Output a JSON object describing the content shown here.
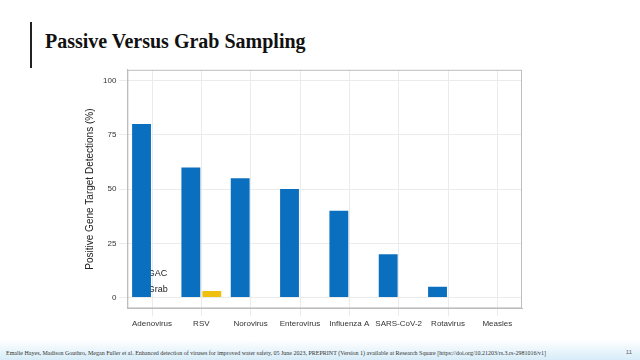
{
  "slide": {
    "title": "Passive Versus Grab Sampling",
    "footer": "Emalie Hayes, Madison Gouthro, Megan Fuller et al. Enhanced detection of viruses for improved water safety, 05 June 2023, PREPRINT (Version 1) available at Research Square [https://doi.org/10.21203/rs.3.rs-2981016/v1]",
    "page_number": "11"
  },
  "chart_data": {
    "type": "bar",
    "y_label": "Positive Gene Target Detections (%)",
    "categories": [
      "Adenovirus",
      "RSV",
      "Norovirus",
      "Enterovirus",
      "Influenza A",
      "SARS-CoV-2",
      "Rotavirus",
      "Measles"
    ],
    "series": [
      {
        "name": "GAC",
        "color": "#0b6fc0",
        "values": [
          80,
          60,
          55,
          50,
          40,
          20,
          5,
          0
        ]
      },
      {
        "name": "Grab",
        "color": "#f0c010",
        "values": [
          0,
          3,
          0,
          0,
          0,
          0,
          0,
          0
        ]
      }
    ],
    "ylim": [
      -5,
      105
    ],
    "yticks": [
      0,
      25,
      50,
      75,
      100
    ],
    "grid": true,
    "legend": "top-right"
  }
}
